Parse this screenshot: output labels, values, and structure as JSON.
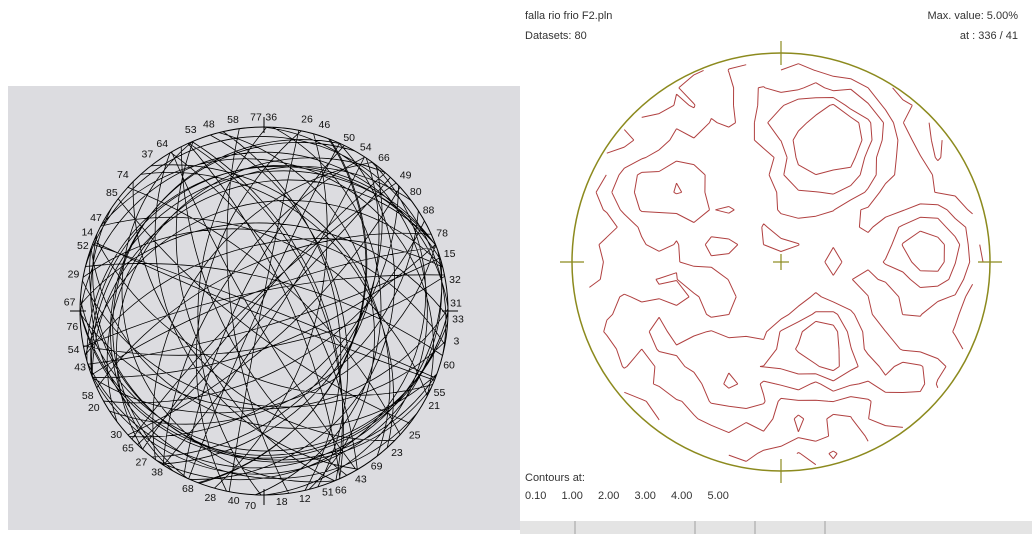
{
  "left_panel": {
    "labels": [
      "58",
      "77",
      "36",
      "26",
      "46",
      "50",
      "54",
      "66",
      "49",
      "80",
      "88",
      "78",
      "15",
      "32",
      "31",
      "33",
      "3",
      "60",
      "55",
      "21",
      "25",
      "23",
      "69",
      "43",
      "66",
      "51",
      "12",
      "18",
      "70",
      "40",
      "28",
      "68",
      "38",
      "27",
      "65",
      "30",
      "20",
      "58",
      "43",
      "54",
      "76",
      "67",
      "29",
      "52",
      "14",
      "47",
      "85",
      "74",
      "37",
      "64",
      "53",
      "48"
    ]
  },
  "right_panel": {
    "file": "falla rio frio F2.pln",
    "datasets": "Datasets: 80",
    "max_value": "Max. value: 5.00%",
    "at": "at : 336 / 41",
    "contours": {
      "label": "Contours at:",
      "levels": [
        "0.10",
        "1.00",
        "2.00",
        "3.00",
        "4.00",
        "5.00"
      ]
    }
  }
}
